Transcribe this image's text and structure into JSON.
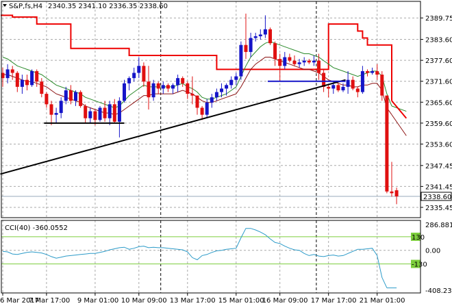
{
  "header": {
    "symbol_line": "S&P,fs,H4",
    "ohlc_line": "2340.35 2341.10 2336.35 2338.60"
  },
  "indicator": {
    "label": "CCI(40) -360.0552",
    "levels": [
      130,
      0,
      -130
    ],
    "level_labels": [
      "130",
      "0.00",
      "-130"
    ],
    "axis_labels": [
      "286.8815",
      "0.00",
      "-408.2395"
    ],
    "ylim": [
      -408.2395,
      286.8815
    ]
  },
  "colors": {
    "bull": "#1515c8",
    "bear": "#e01010",
    "ma_fast": "#2a8a2a",
    "ma_slow": "#8b1010",
    "stop_line": "#ee0000",
    "cci": "#2a9ac8",
    "cci_level": "#7ccd3c",
    "trendline": "#000000",
    "grid": "#a9a9a9",
    "price_line": "#99aabb"
  },
  "chart_data": {
    "type": "candlestick",
    "title": "S&P,fs,H4",
    "ylim": [
      2332.5,
      2394.5
    ],
    "price_ticks": [
      2389.75,
      2383.6,
      2377.6,
      2371.6,
      2365.6,
      2359.6,
      2353.6,
      2347.45,
      2341.45,
      2335.45
    ],
    "price_tick_labels": [
      "2389.75",
      "2383.60",
      "2377.60",
      "2371.60",
      "2365.60",
      "2359.60",
      "2353.60",
      "2347.45",
      "2341.45",
      "2335.45"
    ],
    "last_price": 2338.6,
    "last_price_label": "2338.60",
    "x_labels": [
      {
        "i": 0,
        "text": "6 Mar 2017"
      },
      {
        "i": 9,
        "text": "7 Mar 17:00"
      },
      {
        "i": 19,
        "text": "9 Mar 01:00"
      },
      {
        "i": 28,
        "text": "10 Mar 09:00"
      },
      {
        "i": 38,
        "text": "13 Mar 17:00"
      },
      {
        "i": 48,
        "text": "15 Mar 01:00"
      },
      {
        "i": 57,
        "text": "16 Mar 09:00"
      },
      {
        "i": 67,
        "text": "17 Mar 17:00"
      },
      {
        "i": 77,
        "text": "21 Mar 01:00"
      }
    ],
    "candles": [
      [
        2374.0,
        2375.5,
        2370.0,
        2372.5
      ],
      [
        2372.5,
        2376.5,
        2371.0,
        2375.0
      ],
      [
        2375.0,
        2376.0,
        2372.0,
        2374.0
      ],
      [
        2374.0,
        2374.5,
        2368.5,
        2370.0
      ],
      [
        2370.0,
        2373.5,
        2368.0,
        2372.0
      ],
      [
        2372.0,
        2373.5,
        2369.0,
        2370.5
      ],
      [
        2370.5,
        2375.0,
        2370.0,
        2374.5
      ],
      [
        2374.5,
        2375.0,
        2370.0,
        2371.5
      ],
      [
        2371.5,
        2372.5,
        2367.0,
        2368.0
      ],
      [
        2368.0,
        2368.5,
        2364.0,
        2365.0
      ],
      [
        2365.0,
        2366.0,
        2359.0,
        2362.0
      ],
      [
        2362.0,
        2364.0,
        2359.5,
        2362.5
      ],
      [
        2362.5,
        2367.0,
        2361.0,
        2366.0
      ],
      [
        2366.0,
        2370.0,
        2365.0,
        2369.0
      ],
      [
        2369.0,
        2370.5,
        2365.0,
        2366.0
      ],
      [
        2366.0,
        2369.0,
        2364.5,
        2368.5
      ],
      [
        2368.5,
        2369.0,
        2364.0,
        2364.5
      ],
      [
        2364.5,
        2365.0,
        2359.5,
        2361.0
      ],
      [
        2361.0,
        2364.0,
        2359.5,
        2363.0
      ],
      [
        2363.0,
        2363.5,
        2359.0,
        2360.5
      ],
      [
        2360.5,
        2364.5,
        2360.0,
        2364.0
      ],
      [
        2364.0,
        2366.0,
        2360.0,
        2361.0
      ],
      [
        2361.0,
        2366.0,
        2359.0,
        2365.0
      ],
      [
        2365.0,
        2366.5,
        2359.5,
        2360.0
      ],
      [
        2360.0,
        2367.0,
        2355.5,
        2366.0
      ],
      [
        2366.0,
        2372.0,
        2365.5,
        2371.0
      ],
      [
        2371.0,
        2373.0,
        2369.0,
        2372.5
      ],
      [
        2372.5,
        2375.5,
        2371.5,
        2374.0
      ],
      [
        2374.0,
        2378.5,
        2372.5,
        2376.0
      ],
      [
        2376.0,
        2377.0,
        2370.0,
        2371.5
      ],
      [
        2371.5,
        2376.0,
        2363.5,
        2367.0
      ],
      [
        2367.0,
        2372.0,
        2366.0,
        2371.0
      ],
      [
        2371.0,
        2371.5,
        2368.0,
        2369.5
      ],
      [
        2369.5,
        2371.5,
        2368.0,
        2370.5
      ],
      [
        2370.5,
        2371.0,
        2368.5,
        2369.5
      ],
      [
        2369.5,
        2371.0,
        2368.0,
        2370.5
      ],
      [
        2370.5,
        2373.5,
        2368.5,
        2372.5
      ],
      [
        2372.5,
        2373.0,
        2370.0,
        2371.0
      ],
      [
        2371.0,
        2371.5,
        2366.5,
        2368.0
      ],
      [
        2368.0,
        2373.0,
        2365.0,
        2367.5
      ],
      [
        2367.5,
        2367.5,
        2362.0,
        2364.0
      ],
      [
        2364.0,
        2364.5,
        2360.5,
        2362.0
      ],
      [
        2362.0,
        2366.5,
        2361.0,
        2365.5
      ],
      [
        2365.5,
        2368.0,
        2364.0,
        2367.0
      ],
      [
        2367.0,
        2369.5,
        2366.0,
        2368.5
      ],
      [
        2368.5,
        2371.0,
        2367.0,
        2369.5
      ],
      [
        2369.5,
        2371.0,
        2367.5,
        2370.5
      ],
      [
        2370.5,
        2373.0,
        2369.5,
        2372.0
      ],
      [
        2372.0,
        2374.0,
        2370.5,
        2373.0
      ],
      [
        2373.0,
        2383.0,
        2372.0,
        2382.0
      ],
      [
        2382.0,
        2391.0,
        2378.0,
        2380.0
      ],
      [
        2380.0,
        2385.5,
        2378.5,
        2384.0
      ],
      [
        2384.0,
        2385.5,
        2383.0,
        2384.5
      ],
      [
        2384.5,
        2386.5,
        2383.5,
        2385.0
      ],
      [
        2385.0,
        2390.5,
        2384.0,
        2386.5
      ],
      [
        2386.5,
        2387.0,
        2382.0,
        2382.5
      ],
      [
        2382.5,
        2383.0,
        2376.0,
        2378.0
      ],
      [
        2378.0,
        2379.5,
        2371.5,
        2376.0
      ],
      [
        2376.0,
        2380.0,
        2375.0,
        2378.5
      ],
      [
        2378.5,
        2379.5,
        2377.0,
        2377.5
      ],
      [
        2377.5,
        2379.0,
        2376.0,
        2376.5
      ],
      [
        2376.5,
        2378.0,
        2375.5,
        2377.0
      ],
      [
        2377.0,
        2378.5,
        2376.0,
        2377.5
      ],
      [
        2377.5,
        2378.0,
        2376.5,
        2377.0
      ],
      [
        2377.0,
        2379.0,
        2376.0,
        2377.5
      ],
      [
        2377.5,
        2379.5,
        2372.0,
        2374.0
      ],
      [
        2374.0,
        2375.0,
        2368.5,
        2370.0
      ],
      [
        2370.0,
        2370.5,
        2367.0,
        2369.5
      ],
      [
        2369.5,
        2371.5,
        2368.0,
        2370.5
      ],
      [
        2370.5,
        2371.0,
        2368.5,
        2369.0
      ],
      [
        2369.0,
        2371.0,
        2368.5,
        2370.0
      ],
      [
        2370.0,
        2374.5,
        2368.0,
        2372.0
      ],
      [
        2372.0,
        2373.0,
        2369.0,
        2369.5
      ],
      [
        2369.5,
        2370.0,
        2367.0,
        2368.5
      ],
      [
        2368.5,
        2376.0,
        2368.0,
        2374.5
      ],
      [
        2374.5,
        2375.0,
        2373.0,
        2374.0
      ],
      [
        2374.0,
        2375.5,
        2373.5,
        2374.5
      ],
      [
        2374.5,
        2376.5,
        2372.0,
        2373.5
      ],
      [
        2373.5,
        2374.5,
        2366.0,
        2367.5
      ],
      [
        2367.5,
        2367.5,
        2339.5,
        2340.0
      ],
      [
        2340.0,
        2348.5,
        2338.5,
        2339.5
      ],
      [
        2340.35,
        2341.1,
        2336.35,
        2338.6
      ]
    ],
    "ma_fast": [
      2378.5,
      2378.0,
      2377.0,
      2376.0,
      2375.5,
      2375.0,
      2374.5,
      2374.0,
      2373.5,
      2372.5,
      2371.5,
      2370.5,
      2370.0,
      2369.5,
      2369.0,
      2368.5,
      2368.0,
      2367.0,
      2366.5,
      2366.0,
      2365.5,
      2365.0,
      2364.5,
      2364.0,
      2364.5,
      2366.0,
      2367.5,
      2368.5,
      2369.5,
      2370.5,
      2370.0,
      2370.0,
      2370.0,
      2370.0,
      2370.0,
      2370.0,
      2370.5,
      2371.0,
      2370.0,
      2369.5,
      2368.5,
      2367.0,
      2366.5,
      2366.5,
      2367.0,
      2367.5,
      2368.0,
      2369.0,
      2370.0,
      2373.0,
      2376.0,
      2378.5,
      2380.0,
      2381.5,
      2382.5,
      2383.0,
      2382.5,
      2382.0,
      2381.5,
      2381.0,
      2380.5,
      2380.0,
      2379.5,
      2379.5,
      2379.0,
      2378.5,
      2377.5,
      2376.5,
      2375.5,
      2375.0,
      2374.5,
      2374.0,
      2373.5,
      2373.0,
      2373.5,
      2374.0,
      2374.5,
      2374.5,
      2373.0,
      2368.0,
      2364.5
    ],
    "ma_slow": [
      2373.5,
      2373.5,
      2373.0,
      2372.5,
      2372.0,
      2371.5,
      2371.5,
      2371.0,
      2370.5,
      2370.0,
      2369.0,
      2368.0,
      2367.5,
      2367.0,
      2366.5,
      2366.0,
      2365.5,
      2364.5,
      2364.0,
      2363.5,
      2363.0,
      2362.5,
      2362.5,
      2362.0,
      2362.5,
      2363.5,
      2364.5,
      2365.5,
      2366.5,
      2367.5,
      2367.5,
      2368.0,
      2368.0,
      2368.0,
      2368.0,
      2368.0,
      2368.5,
      2369.0,
      2368.5,
      2368.0,
      2367.0,
      2366.0,
      2365.5,
      2365.5,
      2366.0,
      2366.5,
      2367.0,
      2367.5,
      2368.0,
      2370.0,
      2372.5,
      2375.0,
      2376.5,
      2377.5,
      2378.5,
      2378.5,
      2378.0,
      2377.5,
      2377.0,
      2376.5,
      2376.0,
      2375.5,
      2375.0,
      2375.0,
      2374.5,
      2374.0,
      2373.0,
      2372.0,
      2371.5,
      2371.0,
      2370.5,
      2370.5,
      2370.0,
      2370.0,
      2370.5,
      2370.5,
      2371.0,
      2371.0,
      2369.0,
      2364.0,
      2362.0
    ],
    "stop_line": [
      2390.5,
      2390.5,
      2390.0,
      2390.0,
      2390.0,
      2390.0,
      2390.0,
      2388.0,
      2388.0,
      2388.0,
      2388.0,
      2388.0,
      2388.0,
      2388.0,
      2381.0,
      2381.0,
      2381.0,
      2381.0,
      2381.0,
      2381.0,
      2381.0,
      2381.0,
      2381.0,
      2381.0,
      2381.0,
      2381.0,
      2379.0,
      2379.0,
      2379.0,
      2379.0,
      2379.0,
      2379.0,
      2379.0,
      2379.0,
      2379.0,
      2379.0,
      2379.0,
      2379.0,
      2379.0,
      2379.0,
      2379.0,
      2379.0,
      2379.0,
      2379.0,
      2375.0,
      2375.0,
      2375.0,
      2375.0,
      2375.0,
      2375.0,
      2375.0,
      2375.0,
      2375.0,
      2375.0,
      2375.0,
      2375.0,
      2375.0,
      2375.0,
      2375.0,
      2375.0,
      2375.0,
      2375.0,
      2375.0,
      2375.0,
      2375.0,
      2375.0,
      2375.0,
      2388.0,
      2388.0,
      2388.0,
      2388.0,
      2388.0,
      2388.0,
      2386.0,
      2384.0,
      2382.0,
      2382.0,
      2382.0,
      2382.0,
      2382.0,
      2366.0
    ],
    "ma_ext": {
      "fast_end": 2363.0,
      "slow_end": 2356.0
    },
    "trendline": {
      "i1": -0.5,
      "y1": 2345.0,
      "i2": 70.5,
      "y2": 2372.0
    },
    "support_line": {
      "i1": 8.5,
      "i2": 25.0,
      "y": 2359.6
    },
    "resistance_line": {
      "i1": 54.5,
      "i2": 70.5,
      "y": 2371.6
    },
    "cci": [
      -10,
      -15,
      -35,
      -40,
      -30,
      -20,
      -15,
      -20,
      -25,
      -40,
      -60,
      -75,
      -65,
      -55,
      -50,
      -45,
      -40,
      -35,
      -30,
      -30,
      -20,
      -10,
      5,
      15,
      25,
      30,
      10,
      20,
      35,
      40,
      25,
      30,
      25,
      25,
      20,
      15,
      10,
      5,
      -15,
      -70,
      -90,
      -50,
      -40,
      -20,
      -5,
      0,
      10,
      15,
      20,
      120,
      210,
      210,
      195,
      175,
      150,
      110,
      75,
      65,
      40,
      20,
      5,
      0,
      -30,
      -50,
      -40,
      -55,
      -60,
      -50,
      -45,
      -55,
      -50,
      -30,
      -10,
      10,
      10,
      15,
      20,
      -50,
      -260,
      -360
    ]
  }
}
